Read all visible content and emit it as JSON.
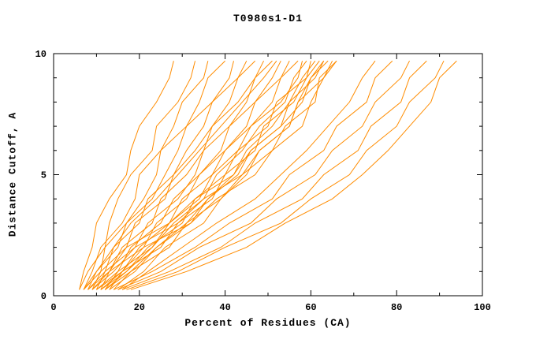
{
  "title": "T0980s1-D1",
  "chart_data": {
    "type": "line",
    "title": "T0980s1-D1",
    "xlabel": "Percent of Residues (CA)",
    "ylabel": "Distance Cutoff, A",
    "xlim": [
      0,
      100
    ],
    "ylim": [
      0,
      10
    ],
    "x_major_ticks": [
      0,
      20,
      40,
      60,
      80,
      100
    ],
    "x_minor_ticks": [
      10,
      30,
      50,
      70,
      90
    ],
    "y_major_ticks": [
      0,
      5,
      10
    ],
    "y_minor_ticks": [
      1,
      2,
      3,
      4,
      6,
      7,
      8,
      9
    ],
    "grid": false,
    "legend_position": "none",
    "line_color": "#ff8c00",
    "axis_color": "#000000",
    "cutoffs": [
      0.25,
      1,
      2,
      3,
      4,
      5,
      6,
      7,
      8,
      9,
      9.7
    ],
    "curves": [
      [
        6,
        7,
        9,
        10,
        13,
        17,
        18,
        20,
        24,
        27,
        28
      ],
      [
        6,
        8,
        12,
        13,
        15,
        18,
        23,
        24,
        29,
        32,
        33
      ],
      [
        7,
        9,
        11,
        16,
        19,
        20,
        25,
        28,
        30,
        35,
        36
      ],
      [
        7,
        11,
        12,
        17,
        21,
        24,
        25,
        31,
        34,
        36,
        40
      ],
      [
        8,
        10,
        15,
        17,
        23,
        26,
        29,
        31,
        37,
        41,
        42
      ],
      [
        8,
        12,
        14,
        20,
        22,
        28,
        31,
        35,
        37,
        43,
        45
      ],
      [
        9,
        11,
        17,
        19,
        26,
        28,
        33,
        37,
        41,
        43,
        47
      ],
      [
        9,
        13,
        16,
        23,
        25,
        31,
        35,
        37,
        43,
        47,
        49
      ],
      [
        10,
        12,
        19,
        22,
        29,
        33,
        35,
        41,
        45,
        47,
        51
      ],
      [
        10,
        15,
        18,
        25,
        28,
        34,
        39,
        41,
        47,
        51,
        53
      ],
      [
        11,
        13,
        21,
        24,
        31,
        34,
        40,
        45,
        47,
        53,
        55
      ],
      [
        11,
        16,
        20,
        27,
        30,
        37,
        40,
        46,
        51,
        53,
        57
      ],
      [
        12,
        15,
        23,
        27,
        34,
        37,
        43,
        46,
        53,
        57,
        58
      ],
      [
        12,
        17,
        22,
        30,
        33,
        40,
        43,
        50,
        52,
        59,
        60
      ],
      [
        13,
        16,
        25,
        29,
        37,
        40,
        47,
        49,
        56,
        59,
        62
      ],
      [
        13,
        19,
        24,
        32,
        36,
        43,
        46,
        53,
        58,
        60,
        64
      ],
      [
        14,
        18,
        27,
        31,
        39,
        45,
        48,
        55,
        57,
        63,
        65
      ],
      [
        15,
        21,
        26,
        35,
        39,
        44,
        51,
        54,
        61,
        62,
        66
      ],
      [
        14,
        23,
        33,
        41,
        51,
        55,
        63,
        66,
        73,
        75,
        79
      ],
      [
        15,
        25,
        34,
        46,
        52,
        61,
        65,
        72,
        75,
        81,
        83
      ],
      [
        16,
        27,
        39,
        47,
        58,
        63,
        71,
        74,
        81,
        83,
        87
      ],
      [
        17,
        29,
        40,
        53,
        60,
        69,
        73,
        80,
        83,
        89,
        91
      ],
      [
        18,
        31,
        45,
        54,
        65,
        72,
        78,
        83,
        88,
        90,
        94
      ],
      [
        9,
        14,
        19,
        29,
        35,
        44,
        48,
        55,
        57,
        60,
        63
      ],
      [
        8,
        13,
        17,
        27,
        33,
        42,
        46,
        53,
        55,
        58,
        61
      ],
      [
        10,
        16,
        21,
        32,
        38,
        47,
        51,
        58,
        60,
        63,
        66
      ],
      [
        11,
        17,
        23,
        28,
        35,
        38,
        44,
        48,
        54,
        56,
        59
      ],
      [
        12,
        18,
        24,
        31,
        36,
        42,
        45,
        51,
        55,
        61,
        63
      ],
      [
        7,
        10,
        14,
        18,
        24,
        29,
        34,
        39,
        44,
        49,
        52
      ],
      [
        16,
        22,
        30,
        38,
        47,
        53,
        59,
        64,
        69,
        72,
        75
      ]
    ]
  }
}
